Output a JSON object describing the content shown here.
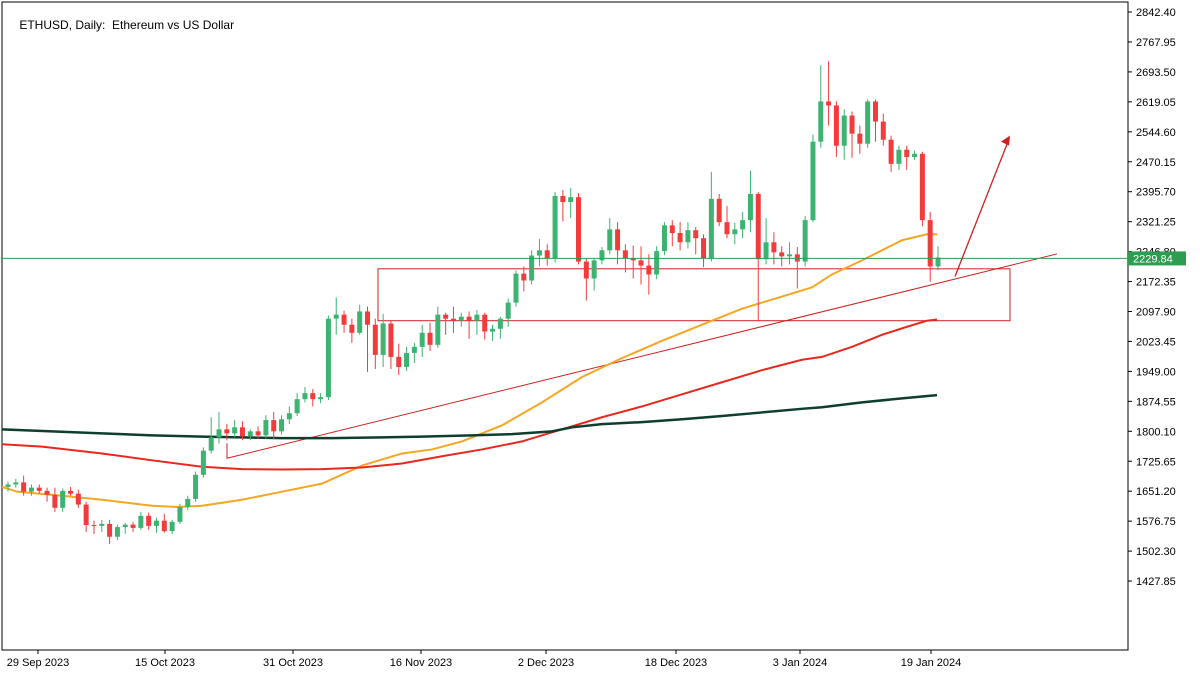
{
  "header": {
    "symbol": "ETHUSD",
    "timeframe": "Daily:",
    "description": "Ethereum vs US Dollar"
  },
  "chart_data": {
    "type": "candlestick",
    "title": "ETHUSD, Daily:  Ethereum vs US Dollar",
    "y_tick_labels": [
      "2842.40",
      "2767.95",
      "2693.50",
      "2619.05",
      "2544.60",
      "2470.15",
      "2395.70",
      "2321.25",
      "2246.80",
      "2172.35",
      "2097.90",
      "2023.45",
      "1949.00",
      "1874.55",
      "1800.10",
      "1725.65",
      "1651.20",
      "1576.75",
      "1502.30",
      "1427.85"
    ],
    "x_tick_labels": [
      "29 Sep 2023",
      "15 Oct 2023",
      "31 Oct 2023",
      "16 Nov 2023",
      "2 Dec 2023",
      "18 Dec 2023",
      "3 Jan 2024",
      "19 Jan 2024"
    ],
    "ylim": [
      1363,
      2849
    ],
    "current_price": "2229.84",
    "colors": {
      "bull": "#3cb371",
      "bear": "#f23c3c",
      "ma_fast": "#f5a623",
      "ma_mid": "#e8281e",
      "ma_slow": "#0f3d2e",
      "annotation": "#d01f1f",
      "current_line": "#2e9d4f",
      "current_label_bg": "#2e9d4f"
    },
    "candles_ohlc": [
      [
        1662,
        1675,
        1650,
        1668
      ],
      [
        1668,
        1682,
        1660,
        1673
      ],
      [
        1673,
        1690,
        1640,
        1650
      ],
      [
        1650,
        1668,
        1640,
        1660
      ],
      [
        1660,
        1668,
        1645,
        1652
      ],
      [
        1652,
        1660,
        1625,
        1642
      ],
      [
        1642,
        1660,
        1600,
        1610
      ],
      [
        1610,
        1658,
        1600,
        1652
      ],
      [
        1652,
        1662,
        1640,
        1645
      ],
      [
        1645,
        1655,
        1610,
        1618
      ],
      [
        1618,
        1625,
        1550,
        1567
      ],
      [
        1567,
        1578,
        1545,
        1565
      ],
      [
        1565,
        1580,
        1550,
        1570
      ],
      [
        1570,
        1580,
        1520,
        1538
      ],
      [
        1538,
        1568,
        1530,
        1562
      ],
      [
        1562,
        1572,
        1545,
        1568
      ],
      [
        1568,
        1575,
        1550,
        1560
      ],
      [
        1560,
        1600,
        1555,
        1590
      ],
      [
        1590,
        1598,
        1555,
        1565
      ],
      [
        1565,
        1585,
        1548,
        1578
      ],
      [
        1578,
        1595,
        1548,
        1552
      ],
      [
        1552,
        1580,
        1545,
        1575
      ],
      [
        1575,
        1620,
        1570,
        1612
      ],
      [
        1612,
        1640,
        1605,
        1632
      ],
      [
        1632,
        1700,
        1625,
        1692
      ],
      [
        1692,
        1760,
        1685,
        1752
      ],
      [
        1752,
        1835,
        1745,
        1785
      ],
      [
        1785,
        1848,
        1770,
        1805
      ],
      [
        1805,
        1818,
        1778,
        1795
      ],
      [
        1795,
        1828,
        1785,
        1810
      ],
      [
        1810,
        1825,
        1778,
        1788
      ],
      [
        1788,
        1805,
        1778,
        1800
      ],
      [
        1800,
        1812,
        1782,
        1790
      ],
      [
        1790,
        1840,
        1782,
        1828
      ],
      [
        1828,
        1848,
        1780,
        1800
      ],
      [
        1800,
        1840,
        1792,
        1830
      ],
      [
        1830,
        1862,
        1818,
        1845
      ],
      [
        1845,
        1895,
        1838,
        1880
      ],
      [
        1880,
        1910,
        1872,
        1895
      ],
      [
        1895,
        1905,
        1862,
        1880
      ],
      [
        1880,
        1895,
        1870,
        1885
      ],
      [
        1885,
        2088,
        1878,
        2080
      ],
      [
        2080,
        2133,
        2040,
        2090
      ],
      [
        2090,
        2100,
        2045,
        2065
      ],
      [
        2065,
        2080,
        2020,
        2045
      ],
      [
        2045,
        2115,
        2040,
        2098
      ],
      [
        2098,
        2110,
        1948,
        2065
      ],
      [
        2065,
        2080,
        1955,
        1990
      ],
      [
        1990,
        2092,
        1960,
        2068
      ],
      [
        2068,
        2075,
        1955,
        1985
      ],
      [
        1985,
        2018,
        1940,
        1960
      ],
      [
        1960,
        2010,
        1950,
        1995
      ],
      [
        1995,
        2020,
        1970,
        2010
      ],
      [
        2010,
        2065,
        1985,
        2045
      ],
      [
        2045,
        2070,
        2000,
        2015
      ],
      [
        2015,
        2110,
        2008,
        2090
      ],
      [
        2090,
        2095,
        2040,
        2080
      ],
      [
        2080,
        2110,
        2045,
        2075
      ],
      [
        2075,
        2095,
        2060,
        2085
      ],
      [
        2085,
        2098,
        2030,
        2075
      ],
      [
        2075,
        2102,
        2040,
        2090
      ],
      [
        2090,
        2095,
        2028,
        2048
      ],
      [
        2048,
        2065,
        2025,
        2055
      ],
      [
        2055,
        2085,
        2030,
        2080
      ],
      [
        2080,
        2130,
        2060,
        2120
      ],
      [
        2120,
        2200,
        2110,
        2192
      ],
      [
        2192,
        2210,
        2148,
        2175
      ],
      [
        2175,
        2250,
        2165,
        2237
      ],
      [
        2237,
        2278,
        2210,
        2250
      ],
      [
        2250,
        2265,
        2212,
        2230
      ],
      [
        2230,
        2395,
        2220,
        2385
      ],
      [
        2385,
        2400,
        2322,
        2370
      ],
      [
        2370,
        2405,
        2330,
        2382
      ],
      [
        2382,
        2392,
        2215,
        2222
      ],
      [
        2222,
        2230,
        2125,
        2180
      ],
      [
        2180,
        2230,
        2150,
        2225
      ],
      [
        2225,
        2258,
        2215,
        2250
      ],
      [
        2250,
        2330,
        2240,
        2302
      ],
      [
        2302,
        2320,
        2215,
        2250
      ],
      [
        2250,
        2265,
        2195,
        2230
      ],
      [
        2230,
        2262,
        2180,
        2225
      ],
      [
        2225,
        2260,
        2165,
        2212
      ],
      [
        2212,
        2240,
        2140,
        2190
      ],
      [
        2190,
        2260,
        2178,
        2248
      ],
      [
        2248,
        2320,
        2238,
        2312
      ],
      [
        2312,
        2325,
        2260,
        2293
      ],
      [
        2293,
        2320,
        2250,
        2270
      ],
      [
        2270,
        2320,
        2255,
        2300
      ],
      [
        2300,
        2308,
        2240,
        2280
      ],
      [
        2280,
        2290,
        2208,
        2230
      ],
      [
        2230,
        2445,
        2222,
        2378
      ],
      [
        2378,
        2390,
        2310,
        2320
      ],
      [
        2320,
        2360,
        2280,
        2290
      ],
      [
        2290,
        2318,
        2265,
        2302
      ],
      [
        2302,
        2345,
        2280,
        2325
      ],
      [
        2325,
        2448,
        2295,
        2390
      ],
      [
        2390,
        2395,
        2075,
        2228
      ],
      [
        2228,
        2330,
        2215,
        2270
      ],
      [
        2270,
        2295,
        2215,
        2245
      ],
      [
        2245,
        2260,
        2210,
        2235
      ],
      [
        2235,
        2270,
        2215,
        2240
      ],
      [
        2240,
        2258,
        2155,
        2222
      ],
      [
        2222,
        2335,
        2210,
        2325
      ],
      [
        2325,
        2538,
        2320,
        2520
      ],
      [
        2520,
        2710,
        2505,
        2620
      ],
      [
        2620,
        2720,
        2560,
        2610
      ],
      [
        2610,
        2620,
        2482,
        2510
      ],
      [
        2510,
        2600,
        2475,
        2585
      ],
      [
        2585,
        2595,
        2480,
        2540
      ],
      [
        2540,
        2560,
        2490,
        2515
      ],
      [
        2515,
        2625,
        2505,
        2620
      ],
      [
        2620,
        2625,
        2520,
        2570
      ],
      [
        2570,
        2590,
        2510,
        2525
      ],
      [
        2525,
        2535,
        2445,
        2465
      ],
      [
        2465,
        2510,
        2450,
        2500
      ],
      [
        2500,
        2510,
        2450,
        2482
      ],
      [
        2482,
        2498,
        2475,
        2490
      ],
      [
        2490,
        2495,
        2310,
        2325
      ],
      [
        2325,
        2345,
        2172,
        2210
      ],
      [
        2210,
        2260,
        2200,
        2232
      ]
    ],
    "series": [
      {
        "name": "",
        "points": [
          [
            0,
            1662
          ],
          [
            15,
            1650
          ],
          [
            60,
            1640
          ],
          [
            100,
            1630
          ],
          [
            150,
            1615
          ],
          [
            175,
            1612
          ],
          [
            200,
            1615
          ],
          [
            240,
            1630
          ],
          [
            280,
            1650
          ],
          [
            320,
            1670
          ],
          [
            360,
            1715
          ],
          [
            400,
            1745
          ],
          [
            430,
            1755
          ],
          [
            460,
            1775
          ],
          [
            500,
            1815
          ],
          [
            540,
            1872
          ],
          [
            580,
            1935
          ],
          [
            620,
            1982
          ],
          [
            660,
            2025
          ],
          [
            700,
            2065
          ],
          [
            740,
            2105
          ],
          [
            780,
            2135
          ],
          [
            810,
            2158
          ],
          [
            830,
            2190
          ],
          [
            860,
            2225
          ],
          [
            880,
            2250
          ],
          [
            900,
            2275
          ],
          [
            925,
            2290
          ],
          [
            935,
            2290
          ]
        ]
      },
      {
        "name": "",
        "points": [
          [
            0,
            1768
          ],
          [
            40,
            1762
          ],
          [
            100,
            1745
          ],
          [
            150,
            1728
          ],
          [
            200,
            1712
          ],
          [
            240,
            1706
          ],
          [
            280,
            1705
          ],
          [
            320,
            1706
          ],
          [
            360,
            1710
          ],
          [
            400,
            1720
          ],
          [
            440,
            1738
          ],
          [
            480,
            1755
          ],
          [
            520,
            1775
          ],
          [
            560,
            1805
          ],
          [
            600,
            1835
          ],
          [
            640,
            1862
          ],
          [
            680,
            1892
          ],
          [
            720,
            1922
          ],
          [
            760,
            1952
          ],
          [
            800,
            1978
          ],
          [
            820,
            1985
          ],
          [
            850,
            2010
          ],
          [
            880,
            2040
          ],
          [
            905,
            2060
          ],
          [
            925,
            2075
          ],
          [
            935,
            2078
          ]
        ]
      },
      {
        "name": "",
        "points": [
          [
            0,
            1805
          ],
          [
            50,
            1800
          ],
          [
            100,
            1795
          ],
          [
            150,
            1790
          ],
          [
            200,
            1787
          ],
          [
            280,
            1783
          ],
          [
            330,
            1783
          ],
          [
            380,
            1785
          ],
          [
            420,
            1787
          ],
          [
            470,
            1790
          ],
          [
            510,
            1793
          ],
          [
            550,
            1800
          ],
          [
            570,
            1810
          ],
          [
            600,
            1818
          ],
          [
            640,
            1823
          ],
          [
            680,
            1830
          ],
          [
            720,
            1838
          ],
          [
            760,
            1847
          ],
          [
            800,
            1856
          ],
          [
            820,
            1860
          ],
          [
            860,
            1872
          ],
          [
            900,
            1882
          ],
          [
            935,
            1890
          ]
        ]
      }
    ],
    "annotations": {
      "zone_price_range": [
        2075,
        2204
      ],
      "trendline_start": [
        1733
      ],
      "arrow_end_price": 2535
    }
  }
}
